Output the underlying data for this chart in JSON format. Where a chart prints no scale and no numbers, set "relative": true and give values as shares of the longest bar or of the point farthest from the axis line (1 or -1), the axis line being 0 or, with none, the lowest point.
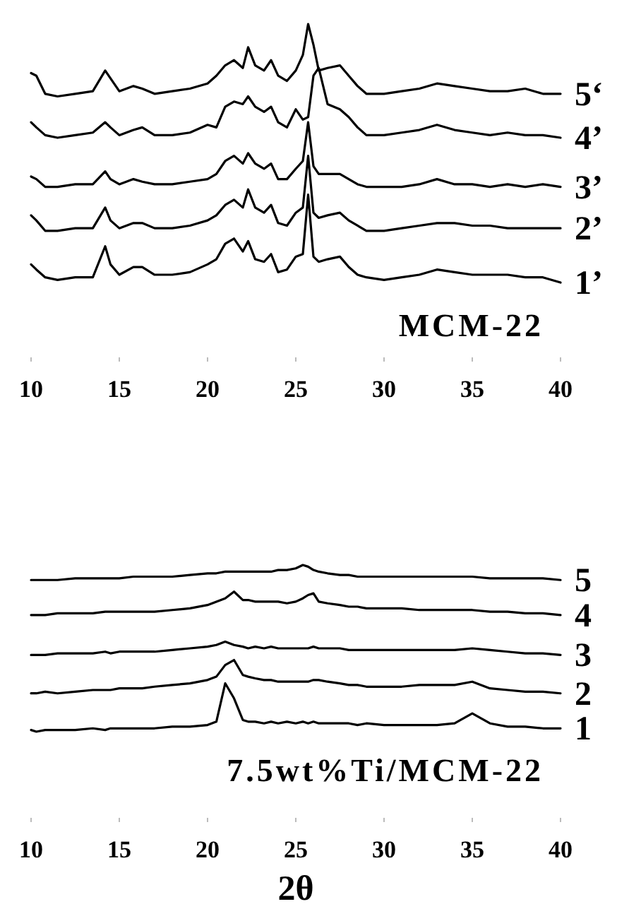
{
  "chart_data": [
    {
      "type": "line",
      "relative": true,
      "tick_labels": "x",
      "annotations": [
        "MCM-22"
      ],
      "xlim": [
        10,
        40
      ],
      "xticks": [
        10,
        15,
        20,
        25,
        30,
        35,
        40
      ],
      "x": [
        10,
        10.3,
        10.8,
        11.5,
        12.5,
        13.5,
        14.2,
        14.5,
        15,
        15.8,
        16.3,
        17,
        18,
        19,
        20,
        20.5,
        21,
        21.5,
        22,
        22.3,
        22.7,
        23.2,
        23.6,
        24,
        24.5,
        25,
        25.4,
        25.7,
        26,
        26.3,
        26.8,
        27.5,
        28,
        28.5,
        29,
        30,
        31,
        32,
        33,
        34,
        35,
        36,
        37,
        38,
        39,
        40
      ],
      "series": [
        {
          "name": "5‘",
          "color": "#000000",
          "values": [
            0.81,
            0.8,
            0.73,
            0.72,
            0.73,
            0.74,
            0.82,
            0.79,
            0.74,
            0.76,
            0.75,
            0.73,
            0.74,
            0.75,
            0.77,
            0.8,
            0.84,
            0.86,
            0.83,
            0.91,
            0.84,
            0.82,
            0.86,
            0.8,
            0.78,
            0.82,
            0.88,
            1.0,
            0.92,
            0.82,
            0.83,
            0.84,
            0.8,
            0.76,
            0.73,
            0.73,
            0.74,
            0.75,
            0.77,
            0.76,
            0.75,
            0.74,
            0.74,
            0.75,
            0.73,
            0.73
          ]
        },
        {
          "name": "4’",
          "color": "#000000",
          "values": [
            0.62,
            0.6,
            0.57,
            0.56,
            0.57,
            0.58,
            0.62,
            0.6,
            0.57,
            0.59,
            0.6,
            0.57,
            0.57,
            0.58,
            0.61,
            0.6,
            0.68,
            0.7,
            0.69,
            0.72,
            0.68,
            0.66,
            0.68,
            0.62,
            0.6,
            0.67,
            0.63,
            0.64,
            0.8,
            0.83,
            0.69,
            0.67,
            0.64,
            0.6,
            0.57,
            0.57,
            0.58,
            0.59,
            0.61,
            0.59,
            0.58,
            0.57,
            0.58,
            0.57,
            0.57,
            0.56
          ]
        },
        {
          "name": "3’",
          "color": "#000000",
          "values": [
            0.41,
            0.4,
            0.37,
            0.37,
            0.38,
            0.38,
            0.43,
            0.4,
            0.38,
            0.4,
            0.39,
            0.38,
            0.38,
            0.39,
            0.4,
            0.42,
            0.47,
            0.49,
            0.46,
            0.5,
            0.46,
            0.44,
            0.46,
            0.4,
            0.4,
            0.44,
            0.47,
            0.62,
            0.45,
            0.42,
            0.42,
            0.42,
            0.4,
            0.38,
            0.37,
            0.37,
            0.37,
            0.38,
            0.4,
            0.38,
            0.38,
            0.37,
            0.38,
            0.37,
            0.38,
            0.37
          ]
        },
        {
          "name": "2’",
          "color": "#000000",
          "values": [
            0.26,
            0.24,
            0.2,
            0.2,
            0.21,
            0.21,
            0.29,
            0.24,
            0.21,
            0.23,
            0.23,
            0.21,
            0.21,
            0.22,
            0.24,
            0.26,
            0.3,
            0.32,
            0.29,
            0.36,
            0.29,
            0.27,
            0.3,
            0.23,
            0.22,
            0.27,
            0.29,
            0.49,
            0.27,
            0.25,
            0.26,
            0.27,
            0.24,
            0.22,
            0.2,
            0.2,
            0.21,
            0.22,
            0.23,
            0.23,
            0.22,
            0.22,
            0.21,
            0.21,
            0.21,
            0.21
          ]
        },
        {
          "name": "1’",
          "color": "#000000",
          "values": [
            0.07,
            0.05,
            0.02,
            0.01,
            0.02,
            0.02,
            0.14,
            0.07,
            0.03,
            0.06,
            0.06,
            0.03,
            0.03,
            0.04,
            0.07,
            0.09,
            0.15,
            0.17,
            0.12,
            0.16,
            0.09,
            0.08,
            0.11,
            0.04,
            0.05,
            0.1,
            0.11,
            0.34,
            0.1,
            0.08,
            0.09,
            0.1,
            0.06,
            0.03,
            0.02,
            0.01,
            0.02,
            0.03,
            0.05,
            0.04,
            0.03,
            0.03,
            0.03,
            0.02,
            0.02,
            0.0
          ]
        }
      ]
    },
    {
      "type": "line",
      "relative": true,
      "tick_labels": "x",
      "xlabel": "2θ",
      "annotations": [
        "7.5wt%Ti/MCM-22"
      ],
      "xlim": [
        10,
        40
      ],
      "xticks": [
        10,
        15,
        20,
        25,
        30,
        35,
        40
      ],
      "x": [
        10,
        10.3,
        10.8,
        11.5,
        12.5,
        13.5,
        14.2,
        14.5,
        15,
        15.8,
        16.3,
        17,
        18,
        19,
        20,
        20.5,
        21,
        21.5,
        22,
        22.3,
        22.7,
        23.2,
        23.6,
        24,
        24.5,
        25,
        25.4,
        25.7,
        26,
        26.3,
        26.8,
        27.5,
        28,
        28.5,
        29,
        30,
        31,
        32,
        33,
        34,
        35,
        36,
        37,
        38,
        39,
        40
      ],
      "series": [
        {
          "name": "5",
          "color": "#000000",
          "values": [
            0.91,
            0.91,
            0.91,
            0.91,
            0.92,
            0.92,
            0.92,
            0.92,
            0.92,
            0.93,
            0.93,
            0.93,
            0.93,
            0.94,
            0.95,
            0.95,
            0.96,
            0.96,
            0.96,
            0.96,
            0.96,
            0.96,
            0.96,
            0.97,
            0.97,
            0.98,
            1.0,
            0.99,
            0.97,
            0.96,
            0.95,
            0.94,
            0.94,
            0.93,
            0.93,
            0.93,
            0.93,
            0.93,
            0.93,
            0.93,
            0.93,
            0.92,
            0.92,
            0.92,
            0.92,
            0.91
          ]
        },
        {
          "name": "4",
          "color": "#000000",
          "values": [
            0.7,
            0.7,
            0.7,
            0.71,
            0.71,
            0.71,
            0.72,
            0.72,
            0.72,
            0.72,
            0.72,
            0.72,
            0.73,
            0.74,
            0.76,
            0.78,
            0.8,
            0.84,
            0.79,
            0.79,
            0.78,
            0.78,
            0.78,
            0.78,
            0.77,
            0.78,
            0.8,
            0.82,
            0.83,
            0.78,
            0.77,
            0.76,
            0.75,
            0.75,
            0.74,
            0.74,
            0.74,
            0.73,
            0.73,
            0.73,
            0.73,
            0.72,
            0.72,
            0.71,
            0.71,
            0.7
          ]
        },
        {
          "name": "3",
          "color": "#000000",
          "values": [
            0.46,
            0.46,
            0.46,
            0.47,
            0.47,
            0.47,
            0.48,
            0.47,
            0.48,
            0.48,
            0.48,
            0.48,
            0.49,
            0.5,
            0.51,
            0.52,
            0.54,
            0.52,
            0.51,
            0.5,
            0.51,
            0.5,
            0.51,
            0.5,
            0.5,
            0.5,
            0.5,
            0.5,
            0.51,
            0.5,
            0.5,
            0.5,
            0.49,
            0.49,
            0.49,
            0.49,
            0.49,
            0.49,
            0.49,
            0.49,
            0.5,
            0.49,
            0.48,
            0.47,
            0.47,
            0.46
          ]
        },
        {
          "name": "2",
          "color": "#000000",
          "values": [
            0.23,
            0.23,
            0.24,
            0.23,
            0.24,
            0.25,
            0.25,
            0.25,
            0.26,
            0.26,
            0.26,
            0.27,
            0.28,
            0.29,
            0.31,
            0.33,
            0.4,
            0.43,
            0.34,
            0.33,
            0.32,
            0.31,
            0.31,
            0.3,
            0.3,
            0.3,
            0.3,
            0.3,
            0.31,
            0.31,
            0.3,
            0.29,
            0.28,
            0.28,
            0.27,
            0.27,
            0.27,
            0.28,
            0.28,
            0.28,
            0.3,
            0.26,
            0.25,
            0.24,
            0.24,
            0.23
          ]
        },
        {
          "name": "1",
          "color": "#000000",
          "values": [
            0.01,
            0.0,
            0.01,
            0.01,
            0.01,
            0.02,
            0.01,
            0.02,
            0.02,
            0.02,
            0.02,
            0.02,
            0.03,
            0.03,
            0.04,
            0.06,
            0.29,
            0.2,
            0.07,
            0.06,
            0.06,
            0.05,
            0.06,
            0.05,
            0.06,
            0.05,
            0.06,
            0.05,
            0.06,
            0.05,
            0.05,
            0.05,
            0.05,
            0.04,
            0.05,
            0.04,
            0.04,
            0.04,
            0.04,
            0.05,
            0.11,
            0.05,
            0.03,
            0.03,
            0.02,
            0.02
          ]
        }
      ]
    }
  ]
}
